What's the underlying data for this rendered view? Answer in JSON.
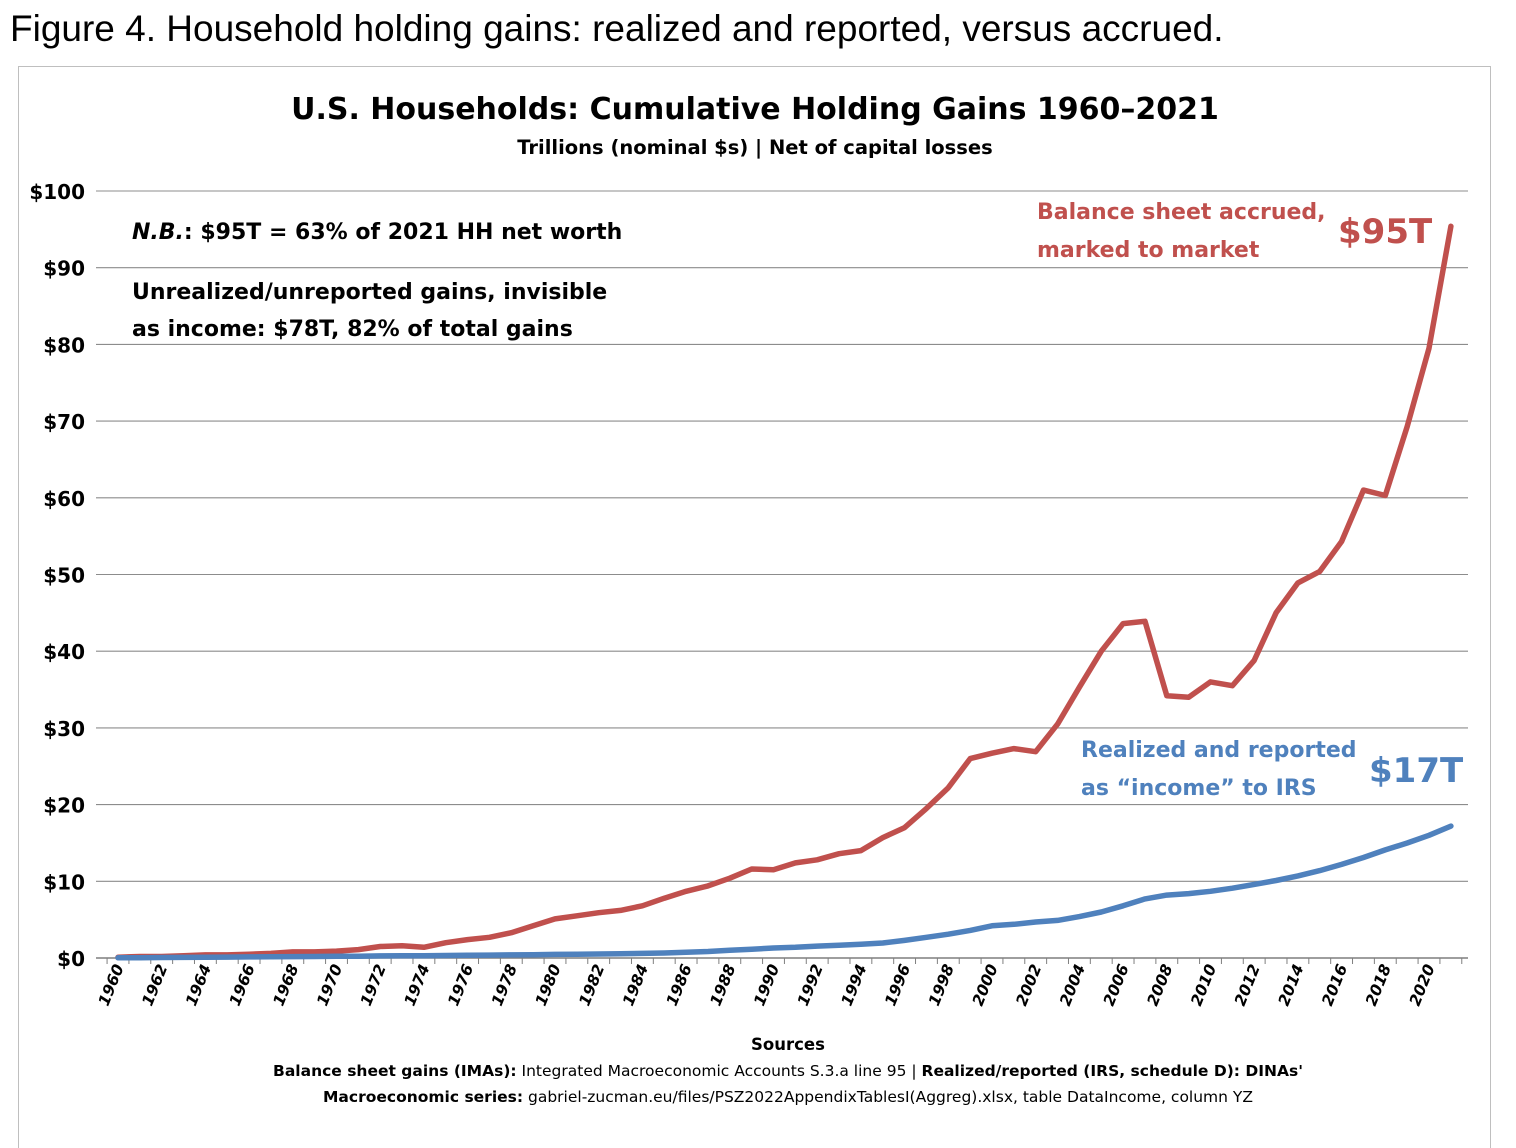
{
  "figure_caption": "Figure 4. Household holding gains: realized and reported, versus accrued.",
  "colors": {
    "accrued": "#c0504d",
    "realized": "#4f81bd",
    "grid": "#8c8c8c",
    "text": "#000000"
  },
  "chart_data": {
    "type": "line",
    "title": "U.S. Households: Cumulative Holding Gains 1960–2021",
    "subtitle": "Trillions (nominal $s) | Net of capital losses",
    "xlabel": "Sources",
    "ylabel": "",
    "ylim": [
      0,
      100
    ],
    "y_ticks": [
      "$0",
      "$10",
      "$20",
      "$30",
      "$40",
      "$50",
      "$60",
      "$70",
      "$80",
      "$90",
      "$100"
    ],
    "x_ticks": [
      "1960",
      "1962",
      "1964",
      "1966",
      "1968",
      "1970",
      "1972",
      "1974",
      "1976",
      "1978",
      "1980",
      "1982",
      "1984",
      "1986",
      "1988",
      "1990",
      "1992",
      "1994",
      "1996",
      "1998",
      "2000",
      "2002",
      "2004",
      "2006",
      "2008",
      "2010",
      "2012",
      "2014",
      "2016",
      "2018",
      "2020"
    ],
    "grid": true,
    "x": [
      1960,
      1961,
      1962,
      1963,
      1964,
      1965,
      1966,
      1967,
      1968,
      1969,
      1970,
      1971,
      1972,
      1973,
      1974,
      1975,
      1976,
      1977,
      1978,
      1979,
      1980,
      1981,
      1982,
      1983,
      1984,
      1985,
      1986,
      1987,
      1988,
      1989,
      1990,
      1991,
      1992,
      1993,
      1994,
      1995,
      1996,
      1997,
      1998,
      1999,
      2000,
      2001,
      2002,
      2003,
      2004,
      2005,
      2006,
      2007,
      2008,
      2009,
      2010,
      2011,
      2012,
      2013,
      2014,
      2015,
      2016,
      2017,
      2018,
      2019,
      2020,
      2021
    ],
    "series": [
      {
        "key": "accrued",
        "values": [
          0.1,
          0.2,
          0.2,
          0.3,
          0.4,
          0.4,
          0.5,
          0.6,
          0.8,
          0.8,
          0.9,
          1.1,
          1.5,
          1.6,
          1.4,
          2.0,
          2.4,
          2.7,
          3.3,
          4.2,
          5.1,
          5.5,
          5.9,
          6.2,
          6.8,
          7.8,
          8.7,
          9.4,
          10.4,
          11.6,
          11.5,
          12.4,
          12.8,
          13.6,
          14.0,
          15.7,
          17.0,
          19.5,
          22.2,
          26.0,
          26.7,
          27.3,
          26.9,
          30.5,
          35.3,
          40.0,
          43.6,
          43.9,
          34.2,
          34.0,
          36.0,
          35.5,
          38.8,
          45.0,
          48.9,
          50.4,
          54.3,
          61.0,
          60.3,
          69.3,
          79.5,
          95.4
        ]
      },
      {
        "key": "realized",
        "values": [
          0.02,
          0.04,
          0.06,
          0.08,
          0.1,
          0.12,
          0.14,
          0.16,
          0.18,
          0.2,
          0.22,
          0.24,
          0.27,
          0.3,
          0.3,
          0.32,
          0.35,
          0.38,
          0.4,
          0.43,
          0.47,
          0.5,
          0.52,
          0.55,
          0.6,
          0.65,
          0.75,
          0.85,
          1.0,
          1.15,
          1.3,
          1.4,
          1.55,
          1.65,
          1.8,
          1.95,
          2.3,
          2.7,
          3.1,
          3.6,
          4.2,
          4.4,
          4.7,
          4.9,
          5.4,
          6.0,
          6.8,
          7.7,
          8.2,
          8.4,
          8.7,
          9.1,
          9.6,
          10.1,
          10.7,
          11.4,
          12.2,
          13.1,
          14.1,
          15.0,
          16.0,
          17.2
        ]
      }
    ],
    "annotations": {
      "nb_label": "N.B.",
      "nb_text": ": $95T = 63% of 2021 HH net worth",
      "unrealized_line1": "Unrealized/unreported gains, invisible",
      "unrealized_line2": "as income: $78T, 82% of total gains",
      "accrued_line1": "Balance sheet accrued,",
      "accrued_line2": "marked to market",
      "accrued_value": "$95T",
      "realized_line1": "Realized and reported",
      "realized_line2": "as “income” to IRS",
      "realized_value": "$17T"
    },
    "sources": {
      "line1_bold_a": "Balance sheet gains (IMAs):",
      "line1_text_a": " Integrated Macroeconomic Accounts S.3.a line 95 | ",
      "line1_bold_b": "Realized/reported (IRS, schedule D): DINAs'",
      "line2_bold": "Macroeconomic series:",
      "line2_text": " gabriel-zucman.eu/files/PSZ2022AppendixTablesI(Aggreg).xlsx, table DataIncome, column YZ"
    }
  }
}
